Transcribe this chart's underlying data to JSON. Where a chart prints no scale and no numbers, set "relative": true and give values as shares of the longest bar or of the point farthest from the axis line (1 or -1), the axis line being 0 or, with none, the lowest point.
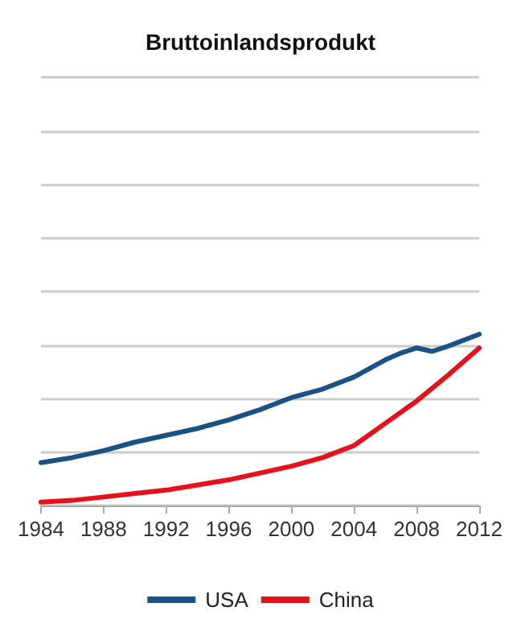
{
  "chart_data": {
    "type": "line",
    "title": "Bruttoinlandsprodukt",
    "relative": true,
    "xlim": [
      1984,
      2012
    ],
    "xticks": [
      1984,
      1988,
      1992,
      1996,
      2000,
      2004,
      2008,
      2012
    ],
    "grid": "y",
    "legend": "bottom",
    "marker": "none",
    "line_style": "solid",
    "series": [
      {
        "name": "USA",
        "color": "#1a5283",
        "x": [
          1984,
          1986,
          1988,
          1990,
          1992,
          1994,
          1996,
          1998,
          2000,
          2002,
          2004,
          2006,
          2007,
          2008,
          2009,
          2010,
          2012
        ],
        "values": [
          0.25,
          0.28,
          0.32,
          0.37,
          0.41,
          0.45,
          0.5,
          0.56,
          0.63,
          0.68,
          0.75,
          0.85,
          0.89,
          0.92,
          0.9,
          0.93,
          1
        ]
      },
      {
        "name": "China",
        "color": "#e8101a",
        "x": [
          1984,
          1986,
          1988,
          1990,
          1992,
          1994,
          1996,
          1998,
          2000,
          2002,
          2004,
          2006,
          2008,
          2010,
          2012
        ],
        "values": [
          0.02,
          0.03,
          0.05,
          0.07,
          0.09,
          0.12,
          0.15,
          0.19,
          0.23,
          0.28,
          0.35,
          0.48,
          0.61,
          0.76,
          0.92
        ]
      }
    ]
  }
}
